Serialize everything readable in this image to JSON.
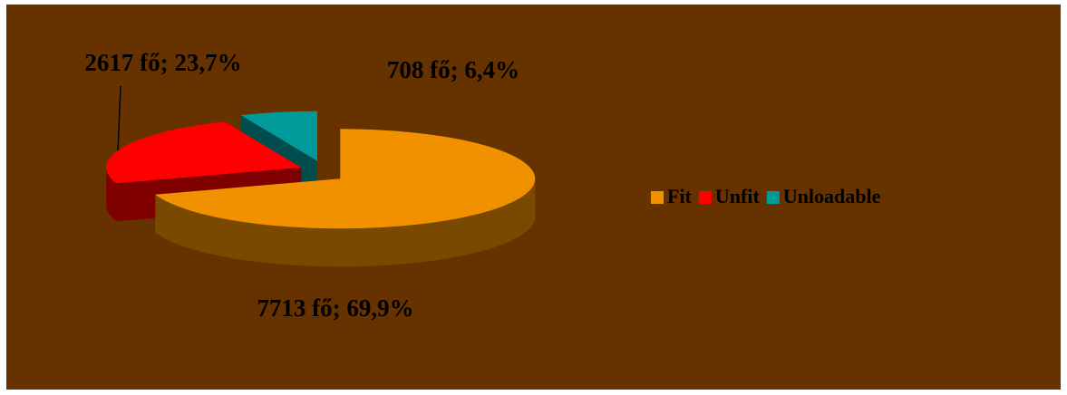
{
  "chart_data": {
    "type": "pie",
    "categories": [
      "Fit",
      "Unfit",
      "Unloadable"
    ],
    "values": [
      7713,
      2617,
      708
    ],
    "value_labels": [
      "7713 fő; 69,9%",
      "2617 fő; 23,7%",
      "708 fő; 6,4%"
    ],
    "colors": [
      "#f29100",
      "#ff0000",
      "#009a9a"
    ],
    "legend": "right"
  }
}
